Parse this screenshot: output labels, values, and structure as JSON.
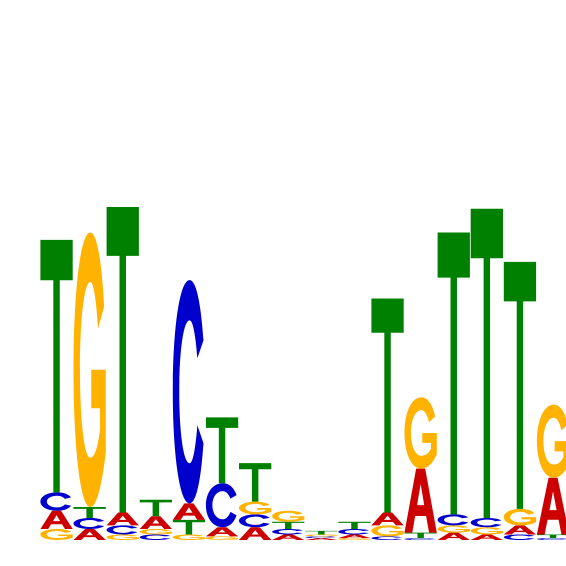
{
  "chart_data": {
    "type": "sequence-logo",
    "alphabet": [
      "A",
      "C",
      "G",
      "T"
    ],
    "colors": {
      "A": "#cc0000",
      "C": "#0000cc",
      "G": "#ffb300",
      "T": "#008000"
    },
    "ylim": [
      0,
      2
    ],
    "positions": [
      {
        "A": 0.1,
        "C": 0.1,
        "G": 0.06,
        "T": 1.38
      },
      {
        "A": 0.06,
        "C": 0.06,
        "G": 1.5,
        "T": 0.06
      },
      {
        "A": 0.07,
        "C": 0.05,
        "G": 0.03,
        "T": 1.67
      },
      {
        "A": 0.07,
        "C": 0.03,
        "G": 0.03,
        "T": 0.09
      },
      {
        "A": 0.09,
        "C": 1.22,
        "G": 0.03,
        "T": 0.08
      },
      {
        "A": 0.05,
        "C": 0.24,
        "G": 0.02,
        "T": 0.36
      },
      {
        "A": 0.07,
        "C": 0.07,
        "G": 0.07,
        "T": 0.21
      },
      {
        "A": 0.03,
        "C": 0.03,
        "G": 0.06,
        "T": 0.04
      },
      {
        "A": 0.01,
        "C": 0.01,
        "G": 0.01,
        "T": 0.02
      },
      {
        "A": 0.02,
        "C": 0.03,
        "G": 0.01,
        "T": 0.04
      },
      {
        "A": 0.07,
        "C": 0.02,
        "G": 0.06,
        "T": 1.17
      },
      {
        "A": 0.35,
        "C": 0.01,
        "G": 0.39,
        "T": 0.03
      },
      {
        "A": 0.04,
        "C": 0.06,
        "G": 0.04,
        "T": 1.54
      },
      {
        "A": 0.03,
        "C": 0.05,
        "G": 0.04,
        "T": 1.69
      },
      {
        "A": 0.05,
        "C": 0.03,
        "G": 0.09,
        "T": 1.35
      },
      {
        "A": 0.31,
        "C": 0.01,
        "G": 0.4,
        "T": 0.02
      }
    ]
  }
}
